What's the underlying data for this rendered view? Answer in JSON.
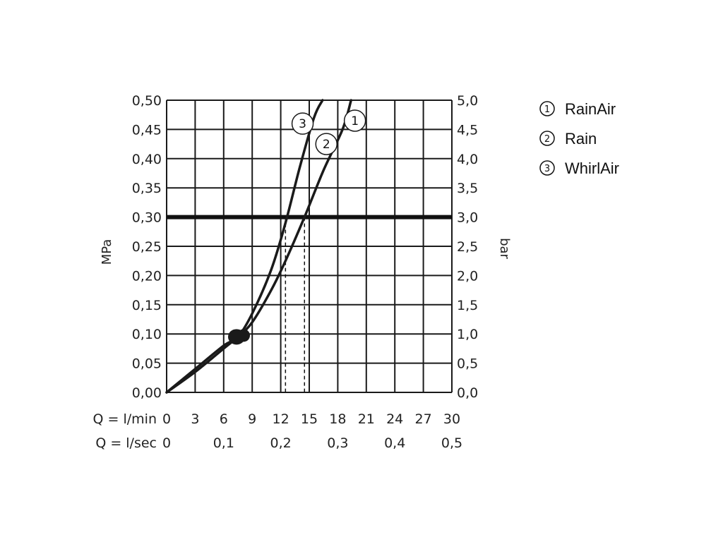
{
  "chart_data": {
    "type": "line",
    "title": "",
    "y_left": {
      "label": "MPa",
      "range": [
        0,
        0.5
      ],
      "ticks": [
        "0,00",
        "0,05",
        "0,10",
        "0,15",
        "0,20",
        "0,25",
        "0,30",
        "0,35",
        "0,40",
        "0,45",
        "0,50"
      ]
    },
    "y_right": {
      "label": "bar",
      "range": [
        0,
        5
      ],
      "ticks": [
        "0,0",
        "0,5",
        "1,0",
        "1,5",
        "2,0",
        "2,5",
        "3,0",
        "3,5",
        "4,0",
        "4,5",
        "5,0"
      ]
    },
    "x_lmin": {
      "label": "Q = l/min",
      "range": [
        0,
        30
      ],
      "ticks": [
        "0",
        "3",
        "6",
        "9",
        "12",
        "15",
        "18",
        "21",
        "24",
        "27",
        "30"
      ]
    },
    "x_lsec": {
      "label": "Q = l/sec",
      "ticks": [
        {
          "at": 0,
          "label": "0"
        },
        {
          "at": 6,
          "label": "0,1"
        },
        {
          "at": 12,
          "label": "0,2"
        },
        {
          "at": 18,
          "label": "0,3"
        },
        {
          "at": 24,
          "label": "0,4"
        },
        {
          "at": 30,
          "label": "0,5"
        }
      ]
    },
    "grid": true,
    "reference_pressure": 0.3,
    "marker_point": {
      "x": 7.5,
      "y": 0.095
    },
    "series": [
      {
        "name": "RainAir / Rain",
        "markers": [
          "1",
          "2"
        ],
        "flow_at_reference": 14.5,
        "points": [
          [
            0,
            0
          ],
          [
            3,
            0.035
          ],
          [
            6,
            0.075
          ],
          [
            7.5,
            0.095
          ],
          [
            9,
            0.12
          ],
          [
            11,
            0.175
          ],
          [
            12.5,
            0.225
          ],
          [
            14.5,
            0.3
          ],
          [
            16.5,
            0.38
          ],
          [
            18.5,
            0.45
          ],
          [
            19.4,
            0.5
          ]
        ]
      },
      {
        "name": "WhirlAir",
        "markers": [
          "3"
        ],
        "flow_at_reference": 12.5,
        "points": [
          [
            0,
            0
          ],
          [
            3,
            0.04
          ],
          [
            6,
            0.08
          ],
          [
            7.5,
            0.095
          ],
          [
            9,
            0.135
          ],
          [
            11,
            0.21
          ],
          [
            12.5,
            0.29
          ],
          [
            14,
            0.385
          ],
          [
            15.5,
            0.47
          ],
          [
            16.4,
            0.5
          ]
        ]
      }
    ],
    "curve_markers": [
      {
        "label": "3",
        "x": 14.3,
        "y": 0.46
      },
      {
        "label": "1",
        "x": 19.8,
        "y": 0.465
      },
      {
        "label": "2",
        "x": 16.8,
        "y": 0.425
      }
    ]
  },
  "legend": [
    {
      "num": "1",
      "label": "RainAir"
    },
    {
      "num": "2",
      "label": "Rain"
    },
    {
      "num": "3",
      "label": "WhirlAir"
    }
  ]
}
